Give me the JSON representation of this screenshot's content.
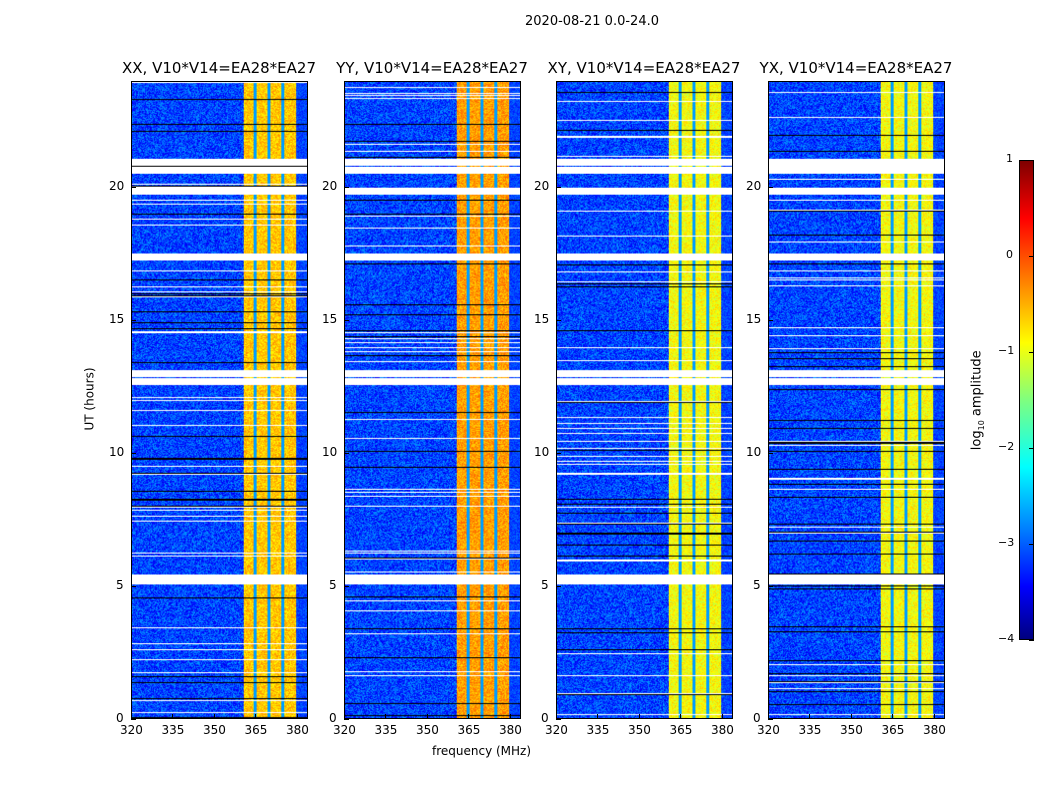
{
  "suptitle": "2020-08-21 0.0-24.0",
  "chart_data": {
    "type": "heatmap",
    "title": "2020-08-21 0.0-24.0",
    "xlabel": "frequency (MHz)",
    "ylabel": "UT (hours)",
    "xlim": [
      320,
      384
    ],
    "ylim": [
      0,
      24
    ],
    "xticks": [
      "320",
      "335",
      "350",
      "365",
      "380"
    ],
    "xtick_values": [
      320,
      335,
      350,
      365,
      380
    ],
    "yticks": [
      "0",
      "5",
      "10",
      "15",
      "20"
    ],
    "ytick_values": [
      0,
      5,
      10,
      15,
      20
    ],
    "panels": [
      {
        "title": "XX, V10*V14=EA28*EA27",
        "band_level": -0.6
      },
      {
        "title": "YY, V10*V14=EA28*EA27",
        "band_level": -0.4
      },
      {
        "title": "XY, V10*V14=EA28*EA27",
        "band_level": -0.9
      },
      {
        "title": "YX, V10*V14=EA28*EA27",
        "band_level": -0.9
      }
    ],
    "background_level": -3.2,
    "bright_band_mhz": [
      360.5,
      380
    ],
    "band_gaps_mhz": [
      365,
      370,
      375
    ],
    "flagged_ut_hours": [
      21.0,
      20.7,
      19.9,
      17.4,
      13.0,
      12.7,
      5.3,
      5.2
    ],
    "colorbar": {
      "label": "log10 amplitude",
      "label_main": "log",
      "label_sub": "10",
      "label_rest": " amplitude",
      "ticks": [
        "1",
        "0",
        "−1",
        "−2",
        "−3",
        "−4"
      ],
      "tick_values": [
        1,
        0,
        -1,
        -2,
        -3,
        -4
      ],
      "range": [
        -4,
        1
      ],
      "colormap": "jet"
    }
  }
}
